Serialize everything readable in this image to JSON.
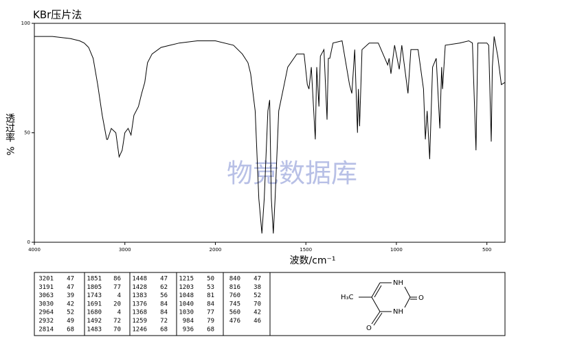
{
  "chart_data": {
    "type": "line",
    "title": "KBr压片法",
    "xlabel": "波数/cm⁻¹",
    "ylabel": "透过率",
    "ylabel_unit": "%",
    "watermark": "物竞数据库",
    "color": "#000000",
    "xlim": [
      4000,
      400
    ],
    "x_scale_break": 2000,
    "x_compression_above_break": 2,
    "xticks": [
      4000,
      3000,
      2000,
      1500,
      1000,
      500
    ],
    "ylim": [
      0,
      100
    ],
    "yticks": [
      0,
      50,
      100
    ],
    "x": [
      4000,
      3800,
      3600,
      3500,
      3450,
      3400,
      3350,
      3300,
      3250,
      3201,
      3191,
      3150,
      3100,
      3063,
      3030,
      3000,
      2964,
      2932,
      2900,
      2850,
      2814,
      2780,
      2750,
      2700,
      2600,
      2500,
      2400,
      2200,
      2000,
      1900,
      1851,
      1820,
      1805,
      1780,
      1760,
      1743,
      1730,
      1710,
      1700,
      1691,
      1680,
      1670,
      1650,
      1620,
      1600,
      1550,
      1510,
      1492,
      1483,
      1470,
      1448,
      1440,
      1428,
      1420,
      1400,
      1383,
      1376,
      1368,
      1350,
      1300,
      1259,
      1246,
      1230,
      1215,
      1210,
      1203,
      1190,
      1150,
      1100,
      1048,
      1040,
      1030,
      1010,
      984,
      970,
      936,
      920,
      880,
      850,
      840,
      830,
      816,
      800,
      780,
      760,
      750,
      745,
      730,
      650,
      600,
      580,
      560,
      550,
      500,
      490,
      476,
      470,
      460,
      440,
      420,
      400
    ],
    "values": [
      94,
      94,
      93,
      92,
      91,
      89,
      84,
      72,
      58,
      47,
      47,
      52,
      50,
      39,
      42,
      50,
      52,
      49,
      58,
      62,
      68,
      73,
      82,
      86,
      89,
      90,
      91,
      92,
      92,
      90,
      86,
      82,
      77,
      60,
      20,
      4,
      20,
      60,
      65,
      20,
      4,
      20,
      60,
      72,
      80,
      86,
      86,
      72,
      70,
      80,
      47,
      80,
      62,
      85,
      88,
      56,
      84,
      84,
      91,
      92,
      72,
      68,
      88,
      50,
      70,
      53,
      88,
      91,
      91,
      81,
      84,
      77,
      90,
      79,
      90,
      68,
      88,
      88,
      70,
      47,
      60,
      38,
      80,
      84,
      52,
      80,
      70,
      90,
      91,
      92,
      91,
      42,
      91,
      91,
      90,
      46,
      80,
      94,
      85,
      72,
      73
    ]
  },
  "peak_table": [
    [
      [
        3201,
        47
      ],
      [
        3191,
        47
      ],
      [
        3063,
        39
      ],
      [
        3030,
        42
      ],
      [
        2964,
        52
      ],
      [
        2932,
        49
      ],
      [
        2814,
        68
      ]
    ],
    [
      [
        1851,
        86
      ],
      [
        1805,
        77
      ],
      [
        1743,
        4
      ],
      [
        1691,
        20
      ],
      [
        1680,
        4
      ],
      [
        1492,
        72
      ],
      [
        1483,
        70
      ]
    ],
    [
      [
        1448,
        47
      ],
      [
        1428,
        62
      ],
      [
        1383,
        56
      ],
      [
        1376,
        84
      ],
      [
        1368,
        84
      ],
      [
        1259,
        72
      ],
      [
        1246,
        68
      ]
    ],
    [
      [
        1215,
        50
      ],
      [
        1203,
        53
      ],
      [
        1048,
        81
      ],
      [
        1040,
        84
      ],
      [
        1030,
        77
      ],
      [
        984,
        79
      ],
      [
        936,
        68
      ]
    ],
    [
      [
        840,
        47
      ],
      [
        816,
        38
      ],
      [
        760,
        52
      ],
      [
        745,
        70
      ],
      [
        560,
        42
      ],
      [
        476,
        46
      ]
    ]
  ],
  "structure": {
    "methyl": "H₃C",
    "n1": "NH",
    "o2": "O",
    "n3": "NH",
    "o4": "O"
  }
}
